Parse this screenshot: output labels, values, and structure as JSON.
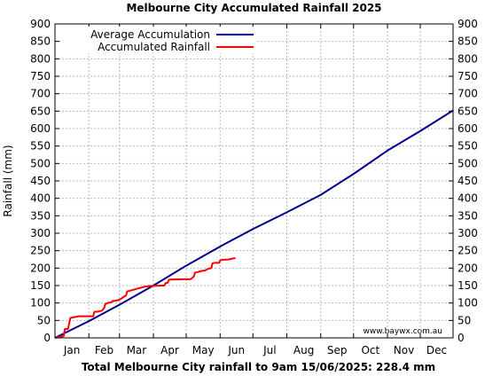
{
  "chart_data": {
    "type": "line",
    "title": "Melbourne City Accumulated Rainfall 2025",
    "xlabel": "Total Melbourne City rainfall to 9am 15/06/2025: 228.4 mm",
    "ylabel": "Rainfall (mm)",
    "ylim": [
      0,
      900
    ],
    "yticks": [
      0,
      50,
      100,
      150,
      200,
      250,
      300,
      350,
      400,
      450,
      500,
      550,
      600,
      650,
      700,
      750,
      800,
      850,
      900
    ],
    "xlim_day_of_year": [
      1,
      365
    ],
    "month_labels": [
      "Jan",
      "Feb",
      "Mar",
      "Apr",
      "May",
      "Jun",
      "Jul",
      "Aug",
      "Sep",
      "Oct",
      "Nov",
      "Dec"
    ],
    "grid": true,
    "legend_position": "top-left",
    "credit": "www.baywx.com.au",
    "series": [
      {
        "name": "Average Accumulation",
        "color": "#00008b",
        "x": [
          1,
          32,
          60,
          91,
          121,
          152,
          182,
          213,
          244,
          274,
          305,
          335,
          365
        ],
        "y": [
          0,
          48,
          95,
          150,
          207,
          262,
          312,
          360,
          410,
          470,
          537,
          593,
          652
        ]
      },
      {
        "name": "Accumulated Rainfall",
        "color": "#ff0000",
        "x": [
          1,
          5,
          6,
          9,
          10,
          11,
          13,
          15,
          23,
          28,
          29,
          36,
          37,
          40,
          41,
          44,
          46,
          47,
          50,
          52,
          54,
          56,
          58,
          59,
          62,
          63,
          66,
          67,
          82,
          88,
          89,
          100,
          101,
          102,
          104,
          105,
          106,
          118,
          119,
          120,
          121,
          125,
          128,
          129,
          131,
          134,
          137,
          138,
          141,
          144,
          145,
          147,
          151,
          152,
          154,
          157,
          160,
          162,
          163,
          164,
          166
        ],
        "y": [
          0,
          3,
          3,
          5,
          25,
          25,
          26,
          57,
          62,
          62,
          62,
          62,
          75,
          75,
          76,
          78,
          86,
          97,
          101,
          101,
          106,
          106,
          108,
          108,
          113,
          116,
          122,
          133,
          146,
          149,
          149,
          150,
          150,
          157,
          158,
          166,
          167,
          168,
          168,
          168,
          168,
          168,
          176,
          187,
          188,
          191,
          193,
          193,
          198,
          200,
          214,
          215,
          215,
          222,
          224,
          224,
          225,
          226,
          227,
          228,
          228.4
        ]
      }
    ]
  }
}
